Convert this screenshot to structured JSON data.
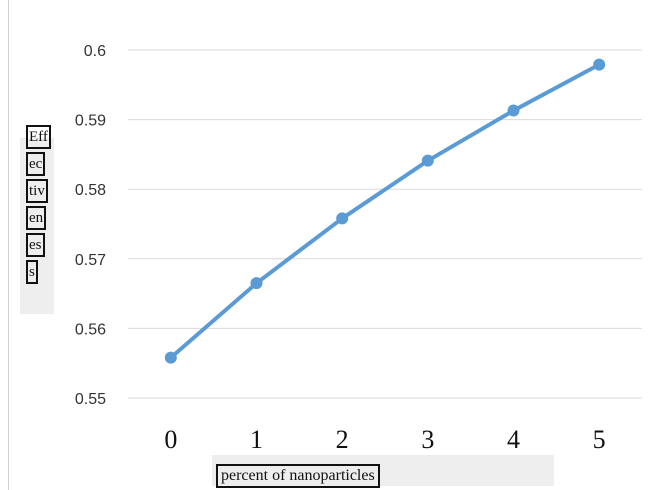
{
  "chart_data": {
    "type": "line",
    "title": "",
    "xlabel": "percent of nanoparticles",
    "ylabel_lines": [
      "Eff",
      "ec",
      "tiv",
      "en",
      "es",
      "s"
    ],
    "x": [
      0,
      1,
      2,
      3,
      4,
      5
    ],
    "x_tick_labels": [
      "0",
      "1",
      "2",
      "3",
      "4",
      "5"
    ],
    "y_tick_labels": [
      "0.6",
      "0.59",
      "0.58",
      "0.57",
      "0.56",
      "0.55"
    ],
    "ylim": [
      0.55,
      0.6
    ],
    "grid": true,
    "series": [
      {
        "values": [
          0.5558,
          0.5665,
          0.5758,
          0.5841,
          0.5913,
          0.5979
        ],
        "color": "#5b9bd5"
      }
    ]
  }
}
